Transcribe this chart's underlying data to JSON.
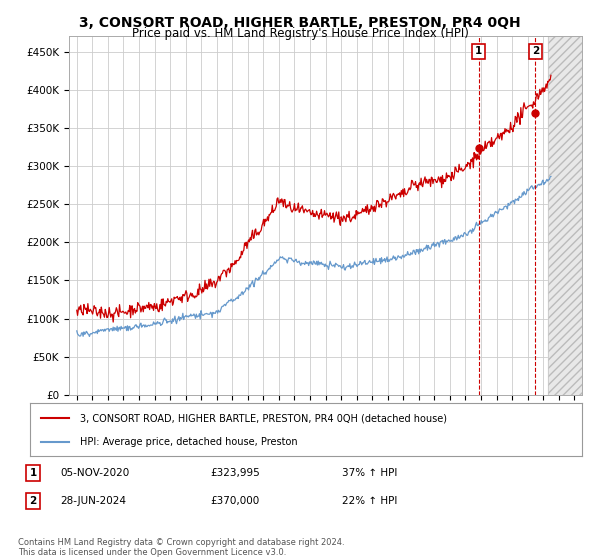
{
  "title": "3, CONSORT ROAD, HIGHER BARTLE, PRESTON, PR4 0QH",
  "subtitle": "Price paid vs. HM Land Registry's House Price Index (HPI)",
  "title_fontsize": 10,
  "subtitle_fontsize": 8.5,
  "ylabel_ticks": [
    "£0",
    "£50K",
    "£100K",
    "£150K",
    "£200K",
    "£250K",
    "£300K",
    "£350K",
    "£400K",
    "£450K"
  ],
  "ytick_values": [
    0,
    50000,
    100000,
    150000,
    200000,
    250000,
    300000,
    350000,
    400000,
    450000
  ],
  "ylim": [
    0,
    470000
  ],
  "xlim_start": 1994.5,
  "xlim_end": 2027.5,
  "red_color": "#cc0000",
  "blue_color": "#6699cc",
  "grid_color": "#cccccc",
  "background_color": "#ffffff",
  "legend_label_red": "3, CONSORT ROAD, HIGHER BARTLE, PRESTON, PR4 0QH (detached house)",
  "legend_label_blue": "HPI: Average price, detached house, Preston",
  "transaction1_label": "1",
  "transaction1_date": "05-NOV-2020",
  "transaction1_price": "£323,995",
  "transaction1_hpi": "37% ↑ HPI",
  "transaction1_x": 2020.85,
  "transaction1_y": 323995,
  "transaction2_label": "2",
  "transaction2_date": "28-JUN-2024",
  "transaction2_price": "£370,000",
  "transaction2_hpi": "22% ↑ HPI",
  "transaction2_x": 2024.5,
  "transaction2_y": 370000,
  "footer": "Contains HM Land Registry data © Crown copyright and database right 2024.\nThis data is licensed under the Open Government Licence v3.0.",
  "hatch_x_start": 2025.3,
  "hatch_color": "#e8e8e8"
}
